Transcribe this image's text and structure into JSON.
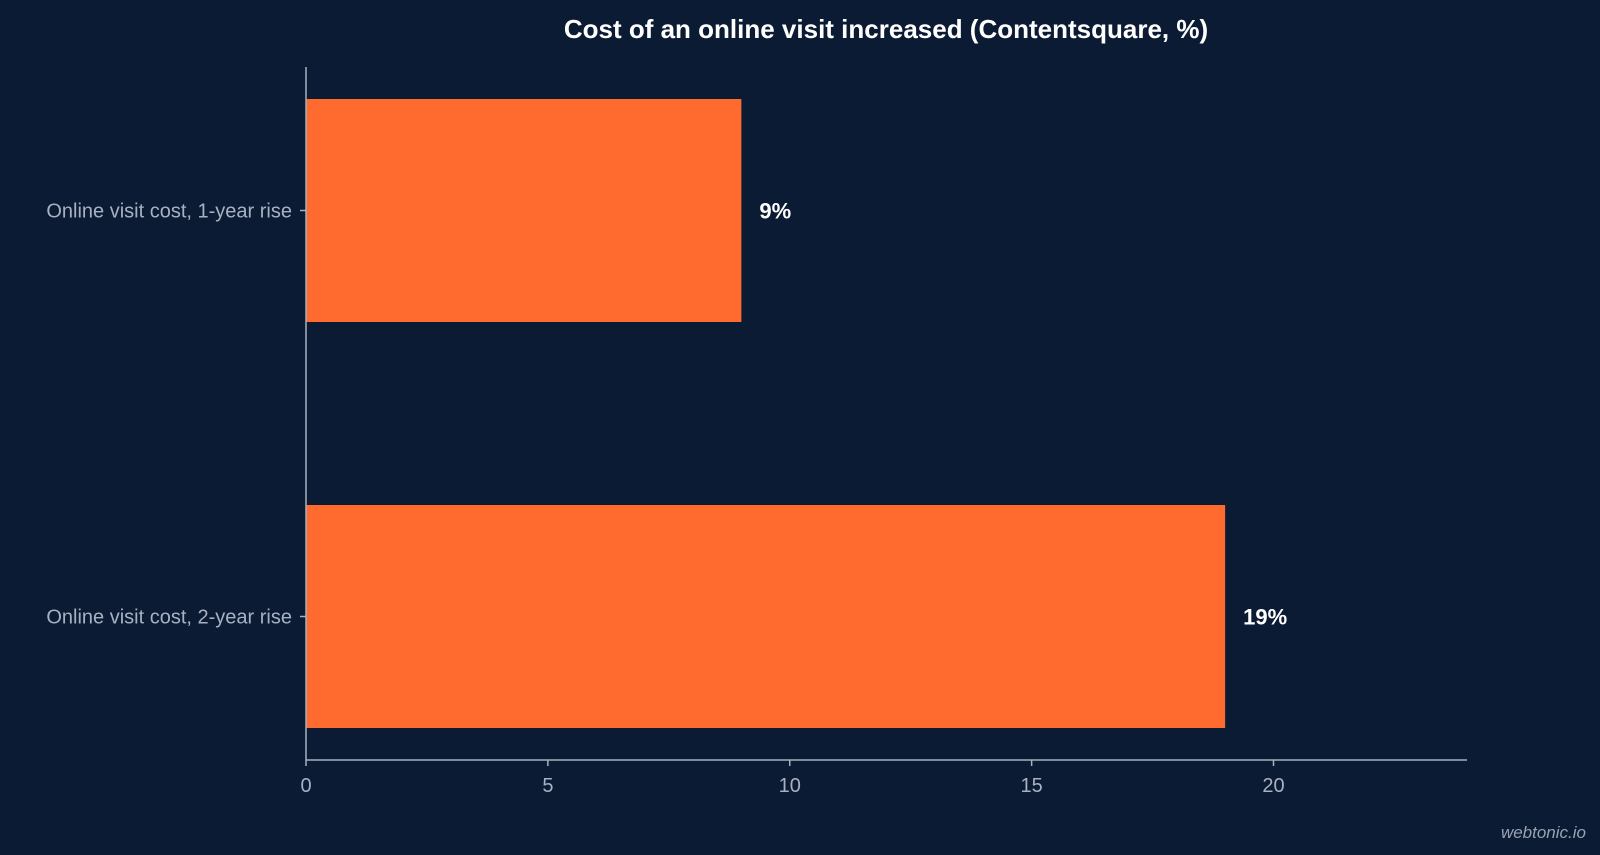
{
  "watermark": "webtonic.io",
  "colors": {
    "background": "#0b1b33",
    "bar": "#ff6b2f",
    "axis": "#a7b1c2",
    "text": "#ffffff"
  },
  "chart_data": {
    "type": "bar",
    "orientation": "horizontal",
    "title": "Cost of an online visit increased (Contentsquare, %)",
    "xlabel": "",
    "ylabel": "",
    "categories": [
      "Online visit cost, 1-year rise",
      "Online visit cost, 2-year rise"
    ],
    "values": [
      9,
      19
    ],
    "data_labels": [
      "9%",
      "19%"
    ],
    "xlim": [
      0,
      24
    ],
    "xticks": [
      0,
      5,
      10,
      15,
      20
    ],
    "grid": false,
    "legend": "none"
  }
}
